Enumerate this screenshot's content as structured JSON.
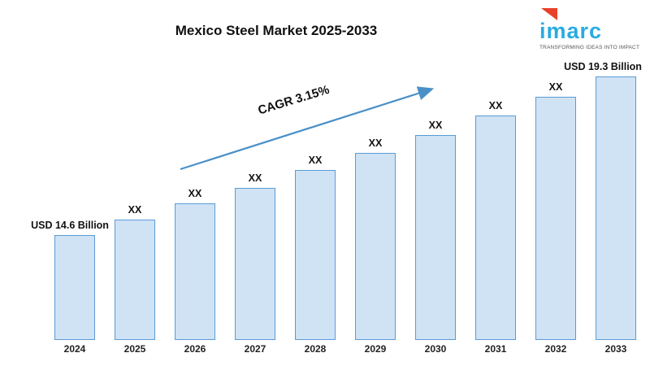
{
  "header": {
    "title": "Mexico Steel Market 2025-2033"
  },
  "logo": {
    "text": "imarc",
    "tagline": "TRANSFORMING IDEAS INTO IMPACT",
    "brand_blue": "#29abe2",
    "brand_red": "#e8402a"
  },
  "chart_data": {
    "type": "bar",
    "title": "Mexico Steel Market 2025-2033",
    "categories": [
      "2024",
      "2025",
      "2026",
      "2027",
      "2028",
      "2029",
      "2030",
      "2031",
      "2032",
      "2033"
    ],
    "bar_labels": [
      "USD 14.6 Billion",
      "XX",
      "XX",
      "XX",
      "XX",
      "XX",
      "XX",
      "XX",
      "XX",
      "USD 19.3 Billion"
    ],
    "values_estimated": [
      14.6,
      15.06,
      15.53,
      16.01,
      16.52,
      17.04,
      17.57,
      18.13,
      18.7,
      19.3
    ],
    "known_values": {
      "2024": 14.6,
      "2033": 19.3
    },
    "annotation": "CAGR 3.15%",
    "xlabel": "",
    "ylabel": "",
    "ylim": [
      11.5,
      19.8
    ],
    "grid": false,
    "legend": false,
    "bar_fill": "#cfe3f5",
    "bar_border": "#5b9bd5",
    "arrow_color": "#4a90c8"
  }
}
